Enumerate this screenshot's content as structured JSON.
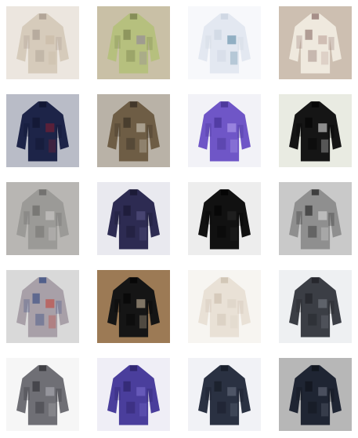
{
  "gallery": {
    "items": [
      {
        "subject": "beige-jacket",
        "bg": "#ece6df",
        "garment": "#d6cbbb",
        "dark": "#9e9186",
        "accent": "#c8b8a3"
      },
      {
        "subject": "green-jacket",
        "bg": "#c9c0a6",
        "garment": "#b6c07e",
        "dark": "#6d7343",
        "accent": "#8d7d9f"
      },
      {
        "subject": "white-shirt",
        "bg": "#f7f8fb",
        "garment": "#e3e8f1",
        "dark": "#c6cfdd",
        "accent": "#4f7f9d"
      },
      {
        "subject": "floral-jacket",
        "bg": "#cdbfb1",
        "garment": "#efe9de",
        "dark": "#7e5f5a",
        "accent": "#b69b92"
      },
      {
        "subject": "navy-jacket",
        "bg": "#b9bcc7",
        "garment": "#1d2448",
        "dark": "#0d112a",
        "accent": "#8a1d2d"
      },
      {
        "subject": "leopard-coat",
        "bg": "#b9b2a7",
        "garment": "#6e5d45",
        "dark": "#2b241c",
        "accent": "#d9d3c9"
      },
      {
        "subject": "purple-jacket",
        "bg": "#f2f2f7",
        "garment": "#6f56c7",
        "dark": "#3b2a86",
        "accent": "#b9a8f2"
      },
      {
        "subject": "black-coat",
        "bg": "#e9ebe2",
        "garment": "#151515",
        "dark": "#000000",
        "accent": "#f0f0f0"
      },
      {
        "subject": "grey-coat",
        "bg": "#b8b6b3",
        "garment": "#9b9a97",
        "dark": "#5d5c5a",
        "accent": "#d4d2cf"
      },
      {
        "subject": "navy-puffer",
        "bg": "#e9e9ef",
        "garment": "#2d2b52",
        "dark": "#141229",
        "accent": "#5c5a8b"
      },
      {
        "subject": "black-sweater",
        "bg": "#ededed",
        "garment": "#111111",
        "dark": "#000000",
        "accent": "#2a2a2a"
      },
      {
        "subject": "grey-black-coat",
        "bg": "#c9c9c9",
        "garment": "#8f8f8f",
        "dark": "#141414",
        "accent": "#e0e0e0"
      },
      {
        "subject": "patchwork-coat",
        "bg": "#d9d9d9",
        "garment": "#a8a0a8",
        "dark": "#223c7a",
        "accent": "#c43a2f"
      },
      {
        "subject": "black-coat-brown-bg",
        "bg": "#9c7a55",
        "garment": "#151515",
        "dark": "#000000",
        "accent": "#d7c2a6"
      },
      {
        "subject": "cream-coat",
        "bg": "#f7f5f1",
        "garment": "#e9e1d6",
        "dark": "#c6b8a6",
        "accent": "#d9cfc2"
      },
      {
        "subject": "charcoal-coat",
        "bg": "#eef0f2",
        "garment": "#3b3e45",
        "dark": "#1b1c20",
        "accent": "#7b7f88"
      },
      {
        "subject": "grey-hooded-jacket",
        "bg": "#f6f6f6",
        "garment": "#6f6f75",
        "dark": "#25252a",
        "accent": "#b5b5bb"
      },
      {
        "subject": "purple-puffer",
        "bg": "#efeef6",
        "garment": "#4a3e9c",
        "dark": "#241b5b",
        "accent": "#7d6fd1"
      },
      {
        "subject": "small-navy-jacket",
        "bg": "#f1f2f6",
        "garment": "#2a3142",
        "dark": "#11151f",
        "accent": "#6b7385"
      },
      {
        "subject": "dark-parka",
        "bg": "#b7b7b7",
        "garment": "#1f2533",
        "dark": "#0b0e14",
        "accent": "#6d7381"
      }
    ]
  }
}
